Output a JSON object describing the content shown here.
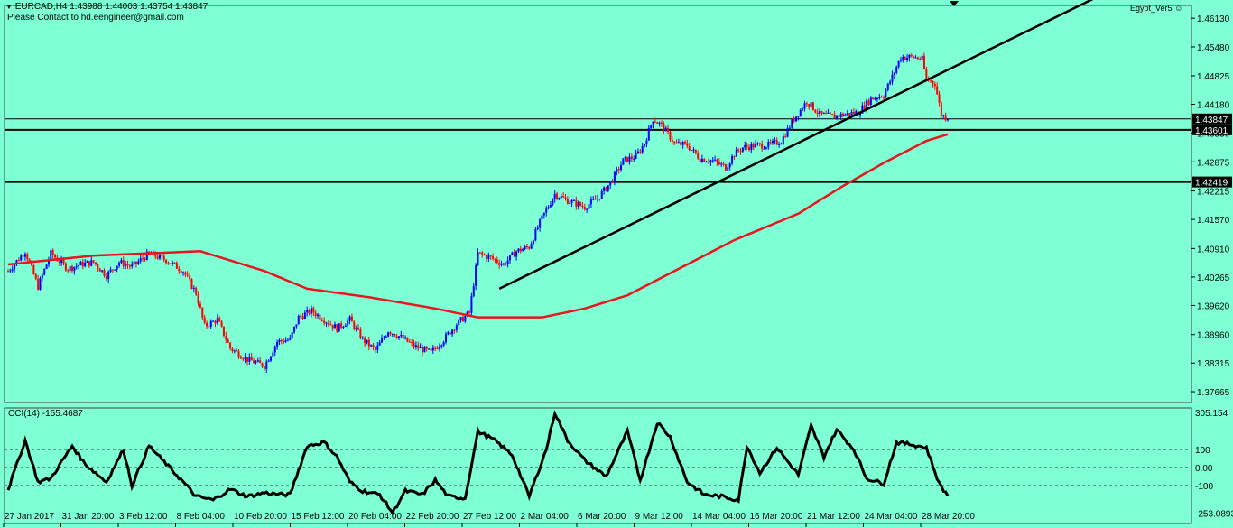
{
  "header": {
    "symbol_line": "EURCAD,H4  1.43988 1.44003 1.43754 1.43847",
    "contact": "Please Contact to hd.eengineer@gmail.com",
    "watermark": "Egypt_Ver5",
    "watermark_icon": "smiley-icon"
  },
  "indicator": {
    "label": "CCI(14) -155.4687"
  },
  "colors": {
    "background": "#7fffd4",
    "bull": "#0000ff",
    "bear": "#ff0000",
    "ma": "#e8141e",
    "trendline": "#000000",
    "cci": "#000000"
  },
  "chart_data": {
    "type": "candlestick",
    "symbol": "EURCAD",
    "timeframe": "H4",
    "price_axis": {
      "ylim": [
        1.3742,
        1.4642
      ],
      "ticks": [
        1.4613,
        1.4548,
        1.44825,
        1.4418,
        1.4353,
        1.42875,
        1.42215,
        1.4157,
        1.4091,
        1.40265,
        1.3962,
        1.3896,
        1.38315,
        1.37665
      ],
      "tick_labels": [
        "1.46130",
        "1.45480",
        "1.44825",
        "1.44180",
        "1.43530",
        "1.42875",
        "1.42215",
        "1.41570",
        "1.40910",
        "1.40265",
        "1.39620",
        "1.38960",
        "1.38315",
        "1.37665"
      ]
    },
    "time_axis": {
      "labels": [
        "27 Jan 2017",
        "31 Jan 20:00",
        "3 Feb 12:00",
        "8 Feb 04:00",
        "10 Feb 20:00",
        "15 Feb 12:00",
        "20 Feb 04:00",
        "22 Feb 20:00",
        "27 Feb 12:00",
        "2 Mar 04:00",
        "6 Mar 20:00",
        "9 Mar 12:00",
        "14 Mar 04:00",
        "16 Mar 20:00",
        "21 Mar 12:00",
        "24 Mar 04:00",
        "28 Mar 20:00"
      ]
    },
    "horizontal_levels": [
      {
        "price": 1.43847,
        "label": "1.43847",
        "style": "thin"
      },
      {
        "price": 1.43601,
        "label": "1.43601",
        "style": "thick"
      },
      {
        "price": 1.42419,
        "label": "1.42419",
        "style": "thick"
      }
    ],
    "key_prices": [
      [
        0,
        1.404
      ],
      [
        8,
        1.4085
      ],
      [
        14,
        1.4005
      ],
      [
        20,
        1.408
      ],
      [
        28,
        1.4045
      ],
      [
        34,
        1.4055
      ],
      [
        40,
        1.406
      ],
      [
        46,
        1.403
      ],
      [
        52,
        1.406
      ],
      [
        58,
        1.405
      ],
      [
        66,
        1.408
      ],
      [
        74,
        1.4065
      ],
      [
        82,
        1.404
      ],
      [
        88,
        1.399
      ],
      [
        92,
        1.3915
      ],
      [
        98,
        1.393
      ],
      [
        104,
        1.3865
      ],
      [
        112,
        1.384
      ],
      [
        120,
        1.3825
      ],
      [
        126,
        1.388
      ],
      [
        132,
        1.3885
      ],
      [
        136,
        1.3935
      ],
      [
        142,
        1.395
      ],
      [
        148,
        1.393
      ],
      [
        154,
        1.391
      ],
      [
        160,
        1.393
      ],
      [
        166,
        1.3885
      ],
      [
        172,
        1.386
      ],
      [
        178,
        1.3905
      ],
      [
        184,
        1.389
      ],
      [
        190,
        1.387
      ],
      [
        198,
        1.3855
      ],
      [
        204,
        1.3885
      ],
      [
        210,
        1.392
      ],
      [
        216,
        1.3945
      ],
      [
        220,
        1.408
      ],
      [
        226,
        1.407
      ],
      [
        232,
        1.4055
      ],
      [
        238,
        1.4085
      ],
      [
        244,
        1.4095
      ],
      [
        250,
        1.416
      ],
      [
        256,
        1.4215
      ],
      [
        262,
        1.42
      ],
      [
        270,
        1.4185
      ],
      [
        276,
        1.4205
      ],
      [
        282,
        1.424
      ],
      [
        288,
        1.429
      ],
      [
        294,
        1.43
      ],
      [
        298,
        1.433
      ],
      [
        302,
        1.4385
      ],
      [
        306,
        1.437
      ],
      [
        312,
        1.433
      ],
      [
        318,
        1.4325
      ],
      [
        324,
        1.4295
      ],
      [
        330,
        1.429
      ],
      [
        336,
        1.4275
      ],
      [
        340,
        1.4305
      ],
      [
        344,
        1.432
      ],
      [
        350,
        1.4325
      ],
      [
        356,
        1.4325
      ],
      [
        362,
        1.4335
      ],
      [
        368,
        1.4385
      ],
      [
        374,
        1.4425
      ],
      [
        380,
        1.4395
      ],
      [
        386,
        1.439
      ],
      [
        392,
        1.4395
      ],
      [
        398,
        1.44
      ],
      [
        404,
        1.443
      ],
      [
        410,
        1.444
      ],
      [
        414,
        1.448
      ],
      [
        418,
        1.4525
      ],
      [
        424,
        1.4525
      ],
      [
        428,
        1.452
      ],
      [
        430,
        1.4475
      ],
      [
        434,
        1.4465
      ],
      [
        437,
        1.4395
      ],
      [
        440,
        1.4385
      ]
    ],
    "ma_points": [
      [
        0,
        1.4055
      ],
      [
        40,
        1.4075
      ],
      [
        90,
        1.4085
      ],
      [
        120,
        1.404
      ],
      [
        140,
        1.4
      ],
      [
        170,
        1.398
      ],
      [
        200,
        1.3955
      ],
      [
        220,
        1.3935
      ],
      [
        250,
        1.3935
      ],
      [
        270,
        1.3955
      ],
      [
        290,
        1.3985
      ],
      [
        310,
        1.4035
      ],
      [
        340,
        1.411
      ],
      [
        370,
        1.417
      ],
      [
        390,
        1.423
      ],
      [
        410,
        1.4285
      ],
      [
        430,
        1.4335
      ],
      [
        440,
        1.435
      ]
    ],
    "trendlines": [
      {
        "x1": 230,
        "y1": 1.4,
        "x2": 520,
        "y2": 1.4685
      }
    ],
    "cci": {
      "ylim": [
        -300,
        320
      ],
      "levels": [
        100,
        0.0,
        -100
      ],
      "tick_labels": [
        "305.154",
        "100",
        "0.00",
        "-100",
        "-253.0893"
      ],
      "key_values": [
        [
          0,
          -120
        ],
        [
          8,
          150
        ],
        [
          14,
          -80
        ],
        [
          20,
          -60
        ],
        [
          30,
          120
        ],
        [
          36,
          20
        ],
        [
          46,
          -80
        ],
        [
          54,
          100
        ],
        [
          58,
          -100
        ],
        [
          66,
          120
        ],
        [
          74,
          20
        ],
        [
          82,
          -80
        ],
        [
          88,
          -160
        ],
        [
          96,
          -180
        ],
        [
          104,
          -120
        ],
        [
          112,
          -160
        ],
        [
          120,
          -140
        ],
        [
          128,
          -150
        ],
        [
          132,
          -150
        ],
        [
          140,
          120
        ],
        [
          148,
          140
        ],
        [
          154,
          60
        ],
        [
          160,
          -80
        ],
        [
          166,
          -130
        ],
        [
          174,
          -150
        ],
        [
          180,
          -250
        ],
        [
          186,
          -130
        ],
        [
          194,
          -150
        ],
        [
          200,
          -70
        ],
        [
          206,
          -160
        ],
        [
          214,
          -170
        ],
        [
          220,
          200
        ],
        [
          228,
          150
        ],
        [
          236,
          70
        ],
        [
          244,
          -160
        ],
        [
          252,
          100
        ],
        [
          256,
          305
        ],
        [
          262,
          150
        ],
        [
          270,
          40
        ],
        [
          280,
          -50
        ],
        [
          290,
          200
        ],
        [
          296,
          -70
        ],
        [
          304,
          250
        ],
        [
          310,
          170
        ],
        [
          318,
          -80
        ],
        [
          326,
          -150
        ],
        [
          334,
          -160
        ],
        [
          342,
          -180
        ],
        [
          346,
          120
        ],
        [
          352,
          -30
        ],
        [
          360,
          110
        ],
        [
          370,
          -40
        ],
        [
          376,
          230
        ],
        [
          382,
          60
        ],
        [
          388,
          210
        ],
        [
          396,
          100
        ],
        [
          402,
          -60
        ],
        [
          410,
          -90
        ],
        [
          416,
          140
        ],
        [
          422,
          130
        ],
        [
          430,
          110
        ],
        [
          436,
          -90
        ],
        [
          440,
          -155
        ]
      ],
      "last": -155.4687
    }
  }
}
